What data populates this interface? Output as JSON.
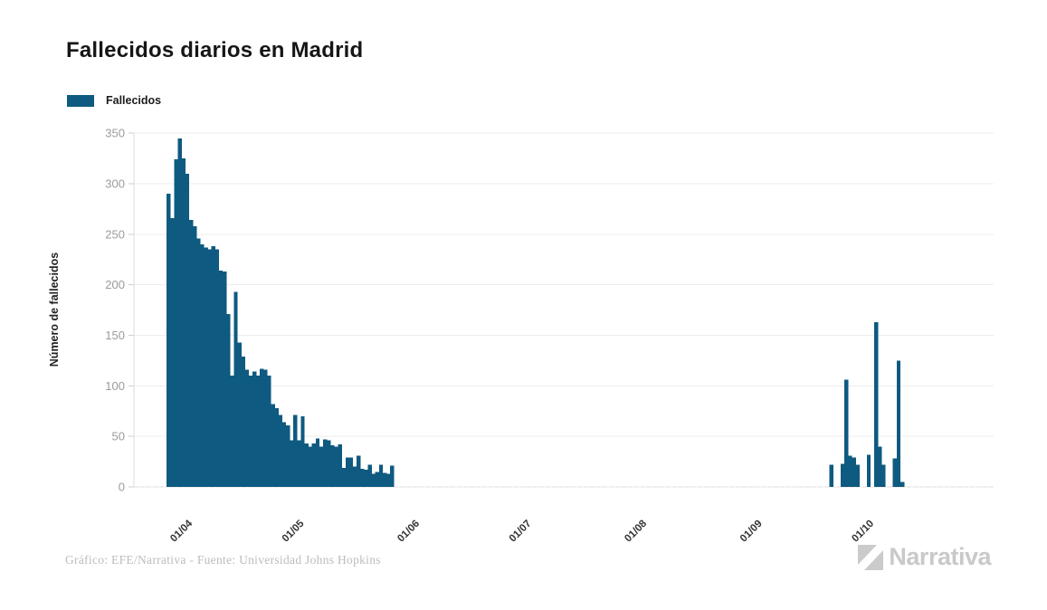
{
  "header": {
    "title": "Fallecidos diarios en Madrid"
  },
  "chart_data": {
    "type": "bar",
    "title": "Fallecidos diarios en Madrid",
    "series_name": "Fallecidos",
    "xlabel": "",
    "ylabel": "Número de fallecidos",
    "ylim": [
      0,
      350
    ],
    "y_ticks": [
      0,
      50,
      100,
      150,
      200,
      250,
      300,
      350
    ],
    "x_ticks": [
      "01/04",
      "01/05",
      "01/06",
      "01/07",
      "01/08",
      "01/09",
      "01/10"
    ],
    "grid": "horizontal",
    "legend_position": "top-left",
    "colors": {
      "bar": "#0e5a80",
      "grid_line": "#ececec",
      "axis_line": "#dedede",
      "tick_mark": "#cfcfcf",
      "y_tick_text": "#9b9b9b",
      "x_tick_text": "#333333"
    },
    "points": [
      [
        "27/03",
        290
      ],
      [
        "28/03",
        266
      ],
      [
        "29/03",
        324
      ],
      [
        "30/03",
        345
      ],
      [
        "31/03",
        325
      ],
      [
        "01/04",
        310
      ],
      [
        "02/04",
        264
      ],
      [
        "03/04",
        258
      ],
      [
        "04/04",
        246
      ],
      [
        "05/04",
        240
      ],
      [
        "06/04",
        237
      ],
      [
        "07/04",
        235
      ],
      [
        "08/04",
        238
      ],
      [
        "09/04",
        235
      ],
      [
        "10/04",
        214
      ],
      [
        "11/04",
        213
      ],
      [
        "12/04",
        171
      ],
      [
        "13/04",
        110
      ],
      [
        "14/04",
        193
      ],
      [
        "15/04",
        143
      ],
      [
        "16/04",
        129
      ],
      [
        "17/04",
        116
      ],
      [
        "18/04",
        110
      ],
      [
        "19/04",
        114
      ],
      [
        "20/04",
        110
      ],
      [
        "21/04",
        117
      ],
      [
        "22/04",
        116
      ],
      [
        "23/04",
        110
      ],
      [
        "24/04",
        82
      ],
      [
        "25/04",
        78
      ],
      [
        "26/04",
        71
      ],
      [
        "27/04",
        64
      ],
      [
        "28/04",
        61
      ],
      [
        "29/04",
        46
      ],
      [
        "30/04",
        71
      ],
      [
        "01/05",
        46
      ],
      [
        "02/05",
        70
      ],
      [
        "03/05",
        43
      ],
      [
        "04/05",
        40
      ],
      [
        "05/05",
        43
      ],
      [
        "06/05",
        48
      ],
      [
        "07/05",
        40
      ],
      [
        "08/05",
        47
      ],
      [
        "09/05",
        46
      ],
      [
        "10/05",
        41
      ],
      [
        "11/05",
        40
      ],
      [
        "12/05",
        42
      ],
      [
        "13/05",
        19
      ],
      [
        "14/05",
        29
      ],
      [
        "15/05",
        29
      ],
      [
        "16/05",
        20
      ],
      [
        "17/05",
        31
      ],
      [
        "18/05",
        18
      ],
      [
        "19/05",
        17
      ],
      [
        "20/05",
        22
      ],
      [
        "21/05",
        13
      ],
      [
        "22/05",
        15
      ],
      [
        "23/05",
        22
      ],
      [
        "24/05",
        14
      ],
      [
        "25/05",
        13
      ],
      [
        "26/05",
        21
      ],
      [
        "21/09",
        22
      ],
      [
        "24/09",
        23
      ],
      [
        "25/09",
        106
      ],
      [
        "26/09",
        31
      ],
      [
        "27/09",
        29
      ],
      [
        "28/09",
        22
      ],
      [
        "01/10",
        32
      ],
      [
        "03/10",
        163
      ],
      [
        "04/10",
        40
      ],
      [
        "05/10",
        22
      ],
      [
        "08/10",
        28
      ],
      [
        "09/10",
        125
      ],
      [
        "10/10",
        5
      ]
    ]
  },
  "footer": {
    "credit": "Gráfico: EFE/Narrativa - Fuente: Universidad Johns Hopkins",
    "logo_text": "Narrativa"
  }
}
